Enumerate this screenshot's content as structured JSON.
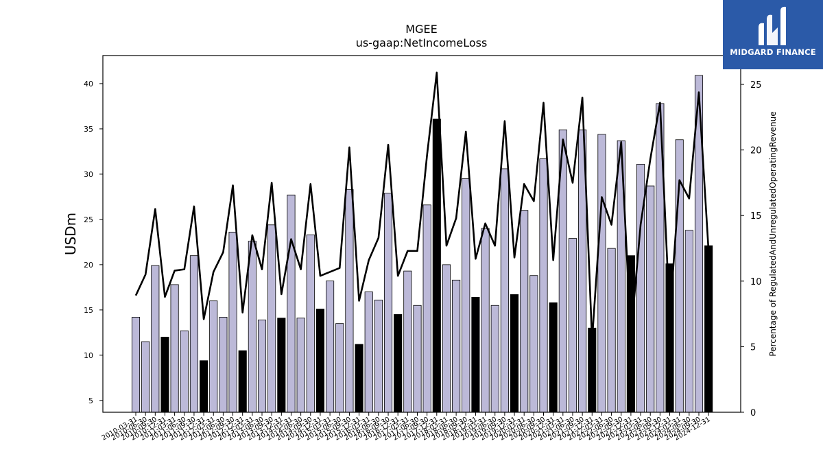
{
  "logo": {
    "text": "MIDGARD FINANCE"
  },
  "chart_data": {
    "type": "bar",
    "title": "MGEE",
    "subtitle": "us-gaap:NetIncomeLoss",
    "ylabel": "USDm",
    "y2label": "Percentage of RegulatedAndUnregulatedOperatingRevenue",
    "ylim": [
      3.7,
      43.1
    ],
    "y2lim": [
      0,
      27.2
    ],
    "yticks": [
      5,
      10,
      15,
      20,
      25,
      30,
      35,
      40
    ],
    "y2ticks": [
      0,
      5,
      10,
      15,
      20,
      25
    ],
    "categories": [
      "2010-03-31",
      "2010-06-30",
      "2010-09-30",
      "2010-12-31",
      "2011-03-31",
      "2011-06-30",
      "2011-09-30",
      "2011-12-31",
      "2012-03-31",
      "2012-06-30",
      "2012-09-30",
      "2012-12-31",
      "2013-03-31",
      "2013-06-30",
      "2013-09-30",
      "2013-12-31",
      "2014-03-31",
      "2014-06-30",
      "2014-09-30",
      "2014-12-31",
      "2015-03-31",
      "2015-06-30",
      "2015-09-30",
      "2015-12-31",
      "2016-03-31",
      "2016-06-30",
      "2016-09-30",
      "2016-12-31",
      "2017-03-31",
      "2017-06-30",
      "2017-09-30",
      "2017-12-31",
      "2018-03-31",
      "2018-06-30",
      "2018-09-30",
      "2018-12-31",
      "2019-03-31",
      "2019-06-30",
      "2019-09-30",
      "2019-12-31",
      "2020-03-31",
      "2020-06-30",
      "2020-09-30",
      "2020-12-31",
      "2021-03-31",
      "2021-06-30",
      "2021-09-30",
      "2021-12-31",
      "2022-03-31",
      "2022-06-30",
      "2022-09-30",
      "2022-12-31",
      "2023-03-31",
      "2023-06-30",
      "2023-09-30",
      "2023-12-31",
      "2024-03-31",
      "2024-06-30",
      "2024-09-30",
      "2024-12-31"
    ],
    "x_tick_labels": [
      "2010-03-31",
      "2010-06-30",
      "2010-09-30",
      "2010-12-31",
      "2011-03-31",
      "2011-06-30",
      "2011-09-30",
      "2011-12-31",
      "2012-03-31",
      "2012-06-30",
      "2012-09-30",
      "2012-12-31",
      "2013-03-31",
      "2013-06-30",
      "2013-09-30",
      "2013-12-31",
      "2014-03-31",
      "2014-06-30",
      "2014-09-30",
      "2014-12-31",
      "2015-03-31",
      "2015-06-30",
      "2015-09-30",
      "2015-12-31",
      "2016-03-31",
      "2016-06-30",
      "2016-09-30",
      "2016-12-31",
      "2017-03-31",
      "2017-06-30",
      "2017-09-30",
      "2017-12-31",
      "2018-03-31",
      "2018-06-30",
      "2018-09-30",
      "2018-12-31",
      "2019-03-31",
      "2019-06-30",
      "2019-09-30",
      "2019-12-31",
      "2020-03-31",
      "2020-06-30",
      "2020-09-30",
      "2020-12-31",
      "2021-03-31",
      "2021-06-30",
      "2021-09-30",
      "2021-12-31",
      "2022-03-31",
      "2022-06-30",
      "2022-09-30",
      "2022-12-31",
      "2023-03-31",
      "2023-06-30",
      "2023-09-30",
      "2023-12-31",
      "2024-03-31",
      "2024-06-30",
      "2024-09-30",
      "2024-12-31"
    ],
    "series": [
      {
        "type": "bar",
        "axis": "left",
        "values": [
          14.2,
          11.5,
          19.9,
          12.0,
          17.8,
          12.7,
          21.0,
          9.4,
          16.0,
          14.2,
          23.6,
          10.5,
          22.6,
          13.9,
          24.4,
          14.1,
          27.7,
          14.1,
          23.3,
          15.1,
          18.2,
          13.5,
          28.3,
          11.2,
          17.0,
          16.1,
          27.9,
          14.5,
          19.3,
          15.5,
          26.6,
          36.1,
          20.0,
          18.3,
          29.5,
          16.4,
          24.0,
          15.5,
          30.6,
          16.7,
          26.0,
          18.8,
          31.7,
          15.8,
          34.9,
          22.9,
          34.9,
          13.0,
          34.4,
          21.8,
          33.7,
          21.0,
          31.1,
          28.7,
          37.8,
          20.1,
          33.8,
          23.8,
          40.9,
          22.1
        ],
        "colors": [
          "#bcb9d8",
          "#bcb9d8",
          "#bcb9d8",
          "#000000",
          "#bcb9d8",
          "#bcb9d8",
          "#bcb9d8",
          "#000000",
          "#bcb9d8",
          "#bcb9d8",
          "#bcb9d8",
          "#000000",
          "#bcb9d8",
          "#bcb9d8",
          "#bcb9d8",
          "#000000",
          "#bcb9d8",
          "#bcb9d8",
          "#bcb9d8",
          "#000000",
          "#bcb9d8",
          "#bcb9d8",
          "#bcb9d8",
          "#000000",
          "#bcb9d8",
          "#bcb9d8",
          "#bcb9d8",
          "#000000",
          "#bcb9d8",
          "#bcb9d8",
          "#bcb9d8",
          "#000000",
          "#bcb9d8",
          "#bcb9d8",
          "#bcb9d8",
          "#000000",
          "#bcb9d8",
          "#bcb9d8",
          "#bcb9d8",
          "#000000",
          "#bcb9d8",
          "#bcb9d8",
          "#bcb9d8",
          "#000000",
          "#bcb9d8",
          "#bcb9d8",
          "#bcb9d8",
          "#000000",
          "#bcb9d8",
          "#bcb9d8",
          "#bcb9d8",
          "#000000",
          "#bcb9d8",
          "#bcb9d8",
          "#bcb9d8",
          "#000000",
          "#bcb9d8",
          "#bcb9d8",
          "#bcb9d8",
          "#000000"
        ]
      },
      {
        "type": "line",
        "axis": "right",
        "color": "#000000",
        "values": [
          8.9,
          10.5,
          15.5,
          8.8,
          10.8,
          10.9,
          15.7,
          7.1,
          10.7,
          12.2,
          17.3,
          7.6,
          13.5,
          10.9,
          17.5,
          9.0,
          13.2,
          10.9,
          17.4,
          10.4,
          10.7,
          11.0,
          20.2,
          8.5,
          11.6,
          13.3,
          20.4,
          10.4,
          12.3,
          12.3,
          19.6,
          25.9,
          12.7,
          14.8,
          21.4,
          11.7,
          14.4,
          12.7,
          22.2,
          11.8,
          17.4,
          16.1,
          23.6,
          11.6,
          20.8,
          17.5,
          24.0,
          5.5,
          16.4,
          14.3,
          20.6,
          5.8,
          14.3,
          19.3,
          23.6,
          7.2,
          17.7,
          16.3,
          24.4,
          12.3
        ]
      }
    ],
    "grid": false,
    "legend": "none"
  }
}
